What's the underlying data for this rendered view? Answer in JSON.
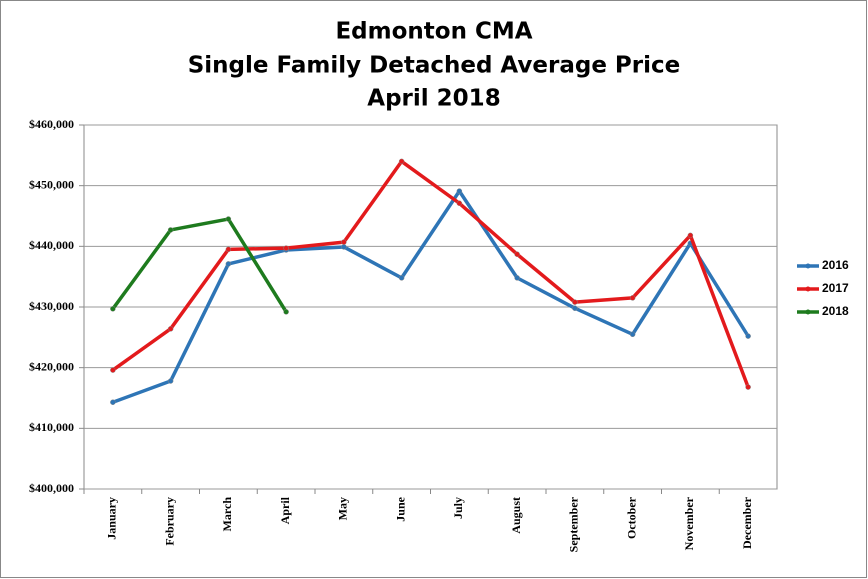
{
  "chart_data": {
    "type": "line",
    "title": [
      "Edmonton CMA",
      "Single Family Detached Average Price",
      "April 2018"
    ],
    "categories": [
      "January",
      "February",
      "March",
      "April",
      "May",
      "June",
      "July",
      "August",
      "September",
      "October",
      "November",
      "December"
    ],
    "series": [
      {
        "name": "2016",
        "color": "#2e75b6",
        "values": [
          414300,
          417800,
          437100,
          439400,
          439900,
          434800,
          449100,
          434800,
          429800,
          425500,
          440500,
          425200
        ]
      },
      {
        "name": "2017",
        "color": "#e31a1c",
        "values": [
          419600,
          426400,
          439500,
          439700,
          440700,
          454000,
          447100,
          438700,
          430800,
          431500,
          441800,
          416800
        ]
      },
      {
        "name": "2018",
        "color": "#1e7b1e",
        "values": [
          429700,
          442700,
          444500,
          429200,
          null,
          null,
          null,
          null,
          null,
          null,
          null,
          null
        ]
      }
    ],
    "ylim": [
      400000,
      460000
    ],
    "yticks": [
      {
        "value": 400000,
        "label": "$400,000"
      },
      {
        "value": 410000,
        "label": "$410,000"
      },
      {
        "value": 420000,
        "label": "$420,000"
      },
      {
        "value": 430000,
        "label": "$430,000"
      },
      {
        "value": 440000,
        "label": "$440,000"
      },
      {
        "value": 450000,
        "label": "$450,000"
      },
      {
        "value": 460000,
        "label": "$460,000"
      }
    ],
    "grid": true,
    "legend": "right"
  }
}
